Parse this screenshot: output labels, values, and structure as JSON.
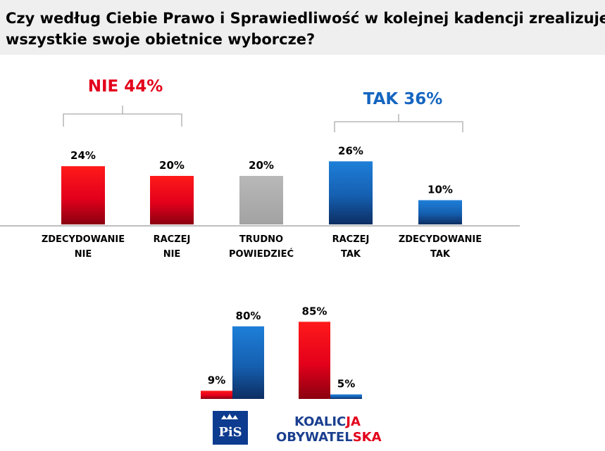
{
  "title": {
    "line1": "Czy według Ciebie Prawo i Sprawiedliwość w kolejnej kadencji zrealizuje",
    "line2": "wszystkie swoje obietnice wyborcze?"
  },
  "colors": {
    "red": "#e3001b",
    "blue": "#1565c0",
    "gray": "#b0b0b0"
  },
  "chart_data": [
    {
      "type": "bar",
      "categories": [
        "ZDECYDOWANIE NIE",
        "RACZEJ NIE",
        "TRUDNO POWIEDZIEĆ",
        "RACZEJ TAK",
        "ZDECYDOWANIE TAK"
      ],
      "label_lines": [
        [
          "ZDECYDOWANIE",
          "NIE"
        ],
        [
          "RACZEJ",
          "NIE"
        ],
        [
          "TRUDNO",
          "POWIEDZIEĆ"
        ],
        [
          "RACZEJ",
          "TAK"
        ],
        [
          "ZDECYDOWANIE",
          "TAK"
        ]
      ],
      "values": [
        24,
        20,
        20,
        26,
        10
      ],
      "value_labels": [
        "24%",
        "20%",
        "20%",
        "26%",
        "10%"
      ],
      "bar_colors": [
        "red",
        "red",
        "gray",
        "blue",
        "blue"
      ],
      "groups": [
        {
          "label": "NIE 44%",
          "color": "red"
        },
        {
          "label": "TAK 36%",
          "color": "blue"
        }
      ],
      "ylim": [
        0,
        30
      ]
    },
    {
      "type": "bar",
      "categories": [
        "PiS",
        "Koalicja Obywatelska"
      ],
      "series": [
        {
          "name": "NIE",
          "color": "red",
          "values": [
            9,
            85
          ],
          "value_labels": [
            "9%",
            "85%"
          ]
        },
        {
          "name": "TAK",
          "color": "blue",
          "values": [
            80,
            5
          ],
          "value_labels": [
            "80%",
            "5%"
          ]
        }
      ],
      "ylim": [
        0,
        100
      ],
      "logos": {
        "pis_text": "PiS",
        "ko_line1_a": "KOALIC",
        "ko_line1_b": "JA",
        "ko_line2_a": "OBYWATEL",
        "ko_line2_b": "SKA"
      }
    }
  ]
}
